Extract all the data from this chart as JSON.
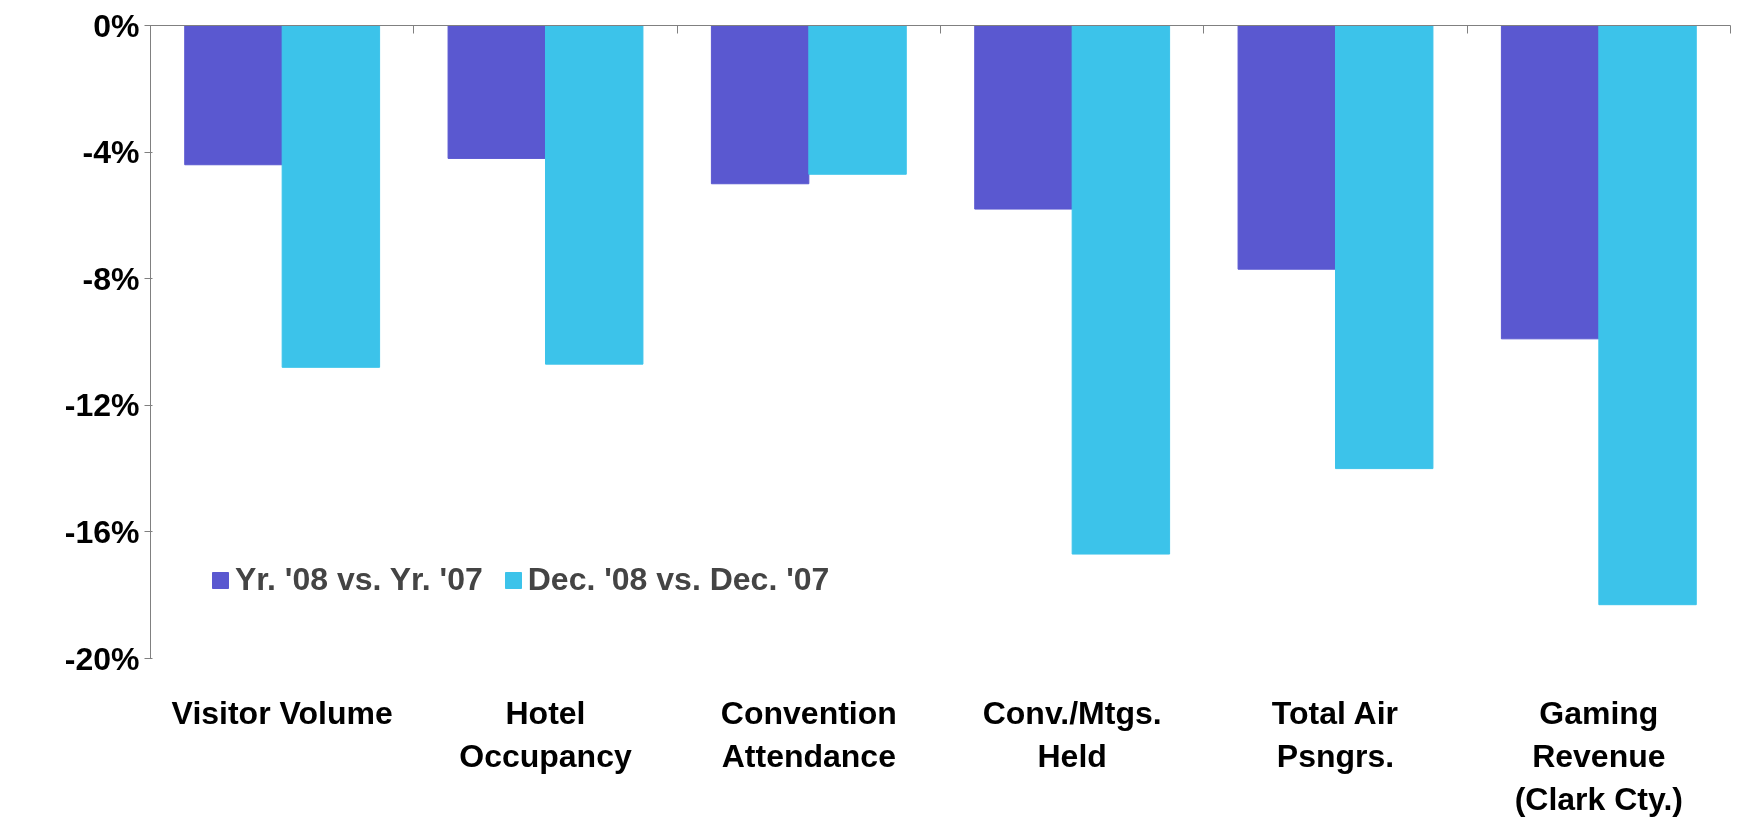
{
  "chart_data": {
    "type": "bar",
    "categories": [
      "Visitor Volume",
      "Hotel\nOccupancy",
      "Convention\nAttendance",
      "Conv./Mtgs.\nHeld",
      "Total Air\nPsngrs.",
      "Gaming\nRevenue\n(Clark Cty.)"
    ],
    "series": [
      {
        "name": "Yr. '08 vs. Yr. '07",
        "color": "#5a58d0",
        "values": [
          -4.4,
          -4.2,
          -5.0,
          -5.8,
          -7.7,
          -9.9
        ]
      },
      {
        "name": "Dec. '08 vs. Dec. '07",
        "color": "#3cc3ea",
        "values": [
          -10.8,
          -10.7,
          -4.7,
          -16.7,
          -14.0,
          -18.3
        ]
      }
    ],
    "ylim": [
      -20,
      0
    ],
    "yticks": [
      {
        "value": 0,
        "label": "0%"
      },
      {
        "value": -4,
        "label": "-4%"
      },
      {
        "value": -8,
        "label": "-8%"
      },
      {
        "value": -12,
        "label": "-12%"
      },
      {
        "value": -16,
        "label": "-16%"
      },
      {
        "value": -20,
        "label": "-20%"
      }
    ],
    "grid": false,
    "legend": "bottom left"
  }
}
